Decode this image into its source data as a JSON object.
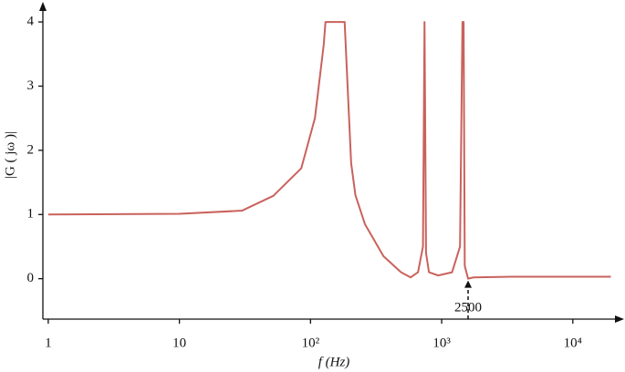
{
  "chart_data": {
    "type": "line",
    "x_label": "f (Hz)",
    "y_label": "|G ( jω )|",
    "x_scale": "log",
    "xlim": [
      0.91,
      25000
    ],
    "ylim": [
      -0.63,
      4.2
    ],
    "xticks": [
      1,
      10,
      {
        "value": 100,
        "label": "10²"
      },
      {
        "value": 1000,
        "label": "10³"
      },
      {
        "value": 10000,
        "label": "10⁴"
      }
    ],
    "yticks": [
      0,
      1,
      2,
      3,
      4
    ],
    "grid": false,
    "series": [
      {
        "color": "#c9625c",
        "x": [
          1,
          10,
          30,
          52,
          85,
          108,
          126,
          130,
          182,
          204,
          220,
          260,
          360,
          490,
          580,
          660,
          720,
          740,
          760,
          800,
          940,
          1200,
          1380,
          1440,
          1470,
          1500,
          1590,
          1750,
          3400,
          19500
        ],
        "values": [
          1.0,
          1.01,
          1.06,
          1.29,
          1.72,
          2.5,
          3.64,
          4,
          4,
          1.8,
          1.3,
          0.85,
          0.35,
          0.1,
          0.02,
          0.1,
          0.5,
          4,
          0.4,
          0.1,
          0.05,
          0.1,
          0.5,
          4,
          4,
          0.2,
          0,
          0.02,
          0.03,
          0.03
        ]
      }
    ],
    "annotations": [
      {
        "text": "2500",
        "x": 1590,
        "y": 0
      }
    ]
  }
}
